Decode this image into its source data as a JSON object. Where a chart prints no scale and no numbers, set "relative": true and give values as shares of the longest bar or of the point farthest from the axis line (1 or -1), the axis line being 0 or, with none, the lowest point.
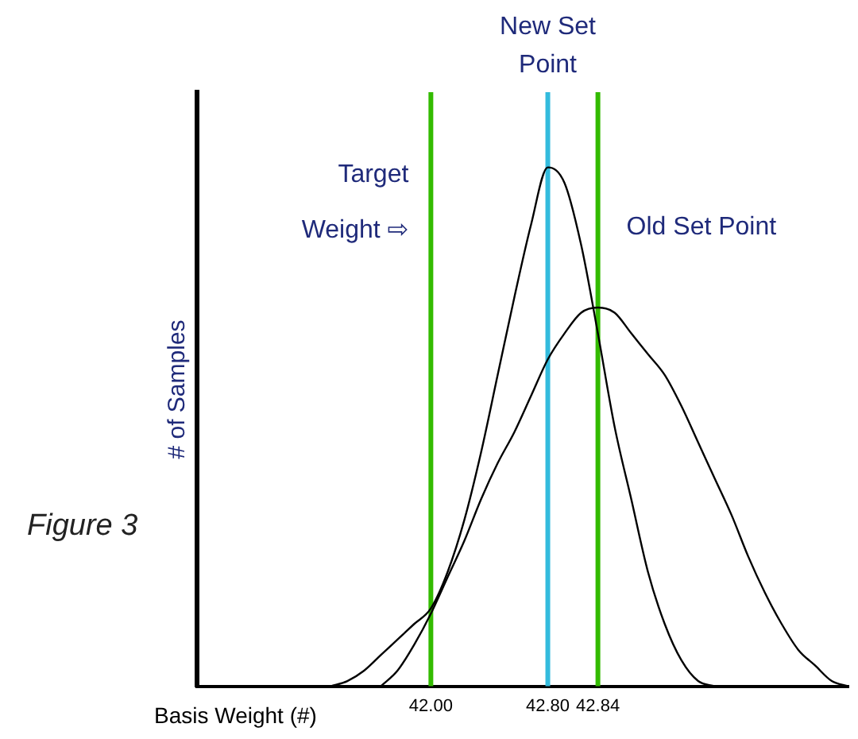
{
  "chart_data": {
    "type": "line",
    "relative": true,
    "xlabel": "Basis Weight (#)",
    "ylabel": "# of Samples",
    "categories": [
      null,
      null,
      null,
      null,
      null,
      null,
      null,
      null,
      null,
      null,
      null,
      null,
      null,
      null,
      "42.00",
      null,
      null,
      null,
      null,
      null,
      null,
      "42.80",
      null,
      null,
      "42.84",
      null,
      null,
      null,
      null,
      null,
      null,
      null,
      null,
      null,
      null,
      null,
      null,
      null,
      null,
      null
    ],
    "series": [
      {
        "type": "line",
        "color": "#000000",
        "values": [
          null,
          null,
          null,
          null,
          null,
          null,
          null,
          null,
          0,
          0.01,
          0.03,
          0.06,
          0.09,
          0.12,
          0.15,
          0.22,
          0.32,
          0.45,
          0.6,
          0.75,
          0.89,
          1,
          0.97,
          0.85,
          0.68,
          0.5,
          0.36,
          0.22,
          0.12,
          0.05,
          0.01,
          0,
          null,
          null,
          null,
          null,
          null,
          null,
          null,
          null
        ]
      },
      {
        "type": "line",
        "color": "#000000",
        "values": [
          null,
          null,
          null,
          null,
          null,
          null,
          null,
          null,
          null,
          null,
          null,
          0,
          0.03,
          0.08,
          0.14,
          0.21,
          0.28,
          0.36,
          0.43,
          0.49,
          0.56,
          0.63,
          0.68,
          0.72,
          0.73,
          0.72,
          0.68,
          0.64,
          0.6,
          0.54,
          0.47,
          0.4,
          0.33,
          0.25,
          0.18,
          0.12,
          0.07,
          0.04,
          0.01,
          0
        ]
      }
    ],
    "ref_lines": [
      {
        "axis": "x",
        "value": "42.00",
        "label": "Target Weight ⇨",
        "color": "#33bb00"
      },
      {
        "axis": "x",
        "value": "42.80",
        "label": "New Set Point",
        "color": "#33bbdd"
      },
      {
        "axis": "x",
        "value": "42.84",
        "label": "Old Set Point",
        "color": "#33bb00"
      }
    ],
    "annotations": [
      "Figure 3"
    ],
    "marker": "none",
    "line_style": "solid",
    "grid": false,
    "legend": false
  }
}
